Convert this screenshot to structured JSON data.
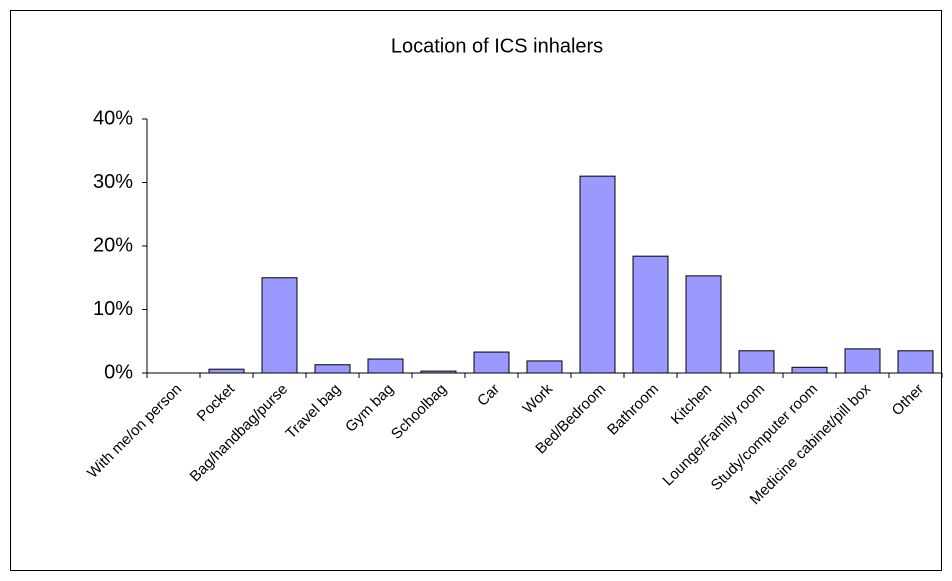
{
  "chart_data": {
    "type": "bar",
    "title": "Location of ICS inhalers",
    "categories": [
      "With me/on person",
      "Pocket",
      "Bag/handbag/purse",
      "Travel bag",
      "Gym bag",
      "Schoolbag",
      "Car",
      "Work",
      "Bed/Bedroom",
      "Bathroom",
      "Kitchen",
      "Lounge/Family room",
      "Study/computer room",
      "Medicine cabinet/pill box",
      "Other"
    ],
    "values": [
      0,
      0.6,
      15.0,
      1.3,
      2.2,
      0.3,
      3.3,
      1.9,
      31.0,
      18.4,
      15.3,
      3.5,
      0.9,
      3.8,
      3.5
    ],
    "color": "#9999ff",
    "ylim": [
      0,
      40
    ],
    "yticks": [
      {
        "value": 0,
        "label": "0%"
      },
      {
        "value": 10,
        "label": "10%"
      },
      {
        "value": 20,
        "label": "20%"
      },
      {
        "value": 30,
        "label": "30%"
      },
      {
        "value": 40,
        "label": "40%"
      }
    ],
    "grid": false
  }
}
